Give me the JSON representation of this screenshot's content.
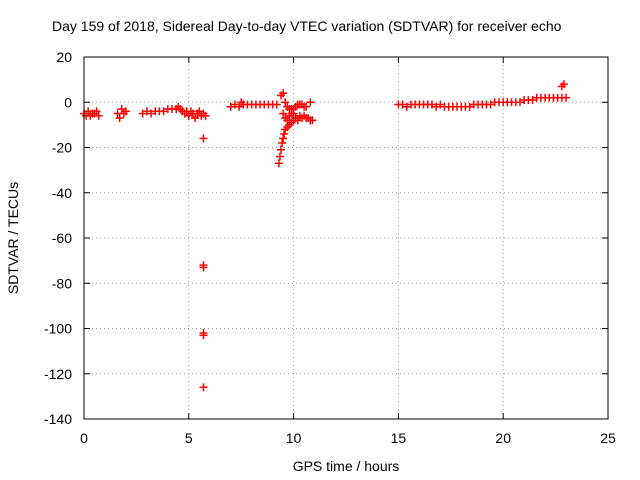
{
  "chart_data": {
    "type": "scatter",
    "title": "Day 159 of 2018, Sidereal Day-to-day VTEC variation (SDTVAR) for receiver echo",
    "xlabel": "GPS time / hours",
    "ylabel": "SDTVAR / TECUs",
    "xlim": [
      0,
      25
    ],
    "ylim": [
      -140,
      20
    ],
    "xticks": [
      0,
      5,
      10,
      15,
      20,
      25
    ],
    "yticks": [
      -140,
      -120,
      -100,
      -80,
      -60,
      -40,
      -20,
      0,
      20
    ],
    "grid": true,
    "legend": "none",
    "marker": "+",
    "series": [
      {
        "name": "SDTVAR",
        "color": "#ff0000",
        "points": [
          [
            0.0,
            -5
          ],
          [
            0.1,
            -6
          ],
          [
            0.2,
            -4
          ],
          [
            0.3,
            -6
          ],
          [
            0.4,
            -5
          ],
          [
            0.5,
            -5
          ],
          [
            0.6,
            -4
          ],
          [
            0.7,
            -6
          ],
          [
            1.6,
            -5
          ],
          [
            1.7,
            -7
          ],
          [
            1.8,
            -3
          ],
          [
            1.9,
            -5
          ],
          [
            2.0,
            -4
          ],
          [
            2.8,
            -5
          ],
          [
            3.0,
            -4
          ],
          [
            3.2,
            -5
          ],
          [
            3.4,
            -4
          ],
          [
            3.6,
            -4
          ],
          [
            3.8,
            -4
          ],
          [
            4.0,
            -3
          ],
          [
            4.2,
            -3
          ],
          [
            4.4,
            -3
          ],
          [
            4.5,
            -2
          ],
          [
            4.6,
            -3
          ],
          [
            4.7,
            -4
          ],
          [
            4.8,
            -5
          ],
          [
            4.9,
            -4
          ],
          [
            5.0,
            -6
          ],
          [
            5.1,
            -4
          ],
          [
            5.2,
            -5
          ],
          [
            5.3,
            -7
          ],
          [
            5.4,
            -5
          ],
          [
            5.5,
            -4
          ],
          [
            5.6,
            -6
          ],
          [
            5.7,
            -5
          ],
          [
            5.8,
            -6
          ],
          [
            5.7,
            -16
          ],
          [
            5.7,
            -72
          ],
          [
            5.7,
            -73
          ],
          [
            5.7,
            -102
          ],
          [
            5.7,
            -103
          ],
          [
            5.7,
            -126
          ],
          [
            7.0,
            -2
          ],
          [
            7.2,
            -1
          ],
          [
            7.4,
            -2
          ],
          [
            7.5,
            0
          ],
          [
            7.6,
            -1
          ],
          [
            7.8,
            -1
          ],
          [
            8.0,
            -1
          ],
          [
            8.2,
            -1
          ],
          [
            8.4,
            -1
          ],
          [
            8.6,
            -1
          ],
          [
            8.8,
            -1
          ],
          [
            9.0,
            -1
          ],
          [
            9.2,
            -1
          ],
          [
            9.4,
            3
          ],
          [
            9.5,
            4
          ],
          [
            9.6,
            0
          ],
          [
            9.7,
            -2
          ],
          [
            9.8,
            -3
          ],
          [
            9.9,
            -3
          ],
          [
            10.0,
            -3
          ],
          [
            10.1,
            -2
          ],
          [
            10.2,
            -1
          ],
          [
            10.3,
            -1
          ],
          [
            10.4,
            -1
          ],
          [
            10.5,
            -2
          ],
          [
            10.6,
            -2
          ],
          [
            10.8,
            0
          ],
          [
            9.3,
            -27
          ],
          [
            9.35,
            -24
          ],
          [
            9.4,
            -21
          ],
          [
            9.45,
            -18
          ],
          [
            9.5,
            -16
          ],
          [
            9.55,
            -14
          ],
          [
            9.6,
            -12
          ],
          [
            9.7,
            -11
          ],
          [
            9.8,
            -10
          ],
          [
            9.9,
            -9
          ],
          [
            10.0,
            -8
          ],
          [
            10.1,
            -7
          ],
          [
            10.2,
            -8
          ],
          [
            10.3,
            -6
          ],
          [
            10.4,
            -7
          ],
          [
            10.5,
            -6
          ],
          [
            10.6,
            -7
          ],
          [
            10.7,
            -7
          ],
          [
            10.8,
            -8
          ],
          [
            10.9,
            -8
          ],
          [
            9.5,
            -5
          ],
          [
            9.6,
            -7
          ],
          [
            9.7,
            -8
          ],
          [
            9.8,
            -6
          ],
          [
            9.9,
            -5
          ],
          [
            10.0,
            -5
          ],
          [
            15.0,
            -1
          ],
          [
            15.2,
            -1
          ],
          [
            15.4,
            -2
          ],
          [
            15.6,
            -1
          ],
          [
            15.8,
            -1
          ],
          [
            16.0,
            -1
          ],
          [
            16.2,
            -1
          ],
          [
            16.4,
            -1
          ],
          [
            16.6,
            -1
          ],
          [
            16.8,
            -2
          ],
          [
            17.0,
            -1
          ],
          [
            17.2,
            -2
          ],
          [
            17.4,
            -2
          ],
          [
            17.6,
            -2
          ],
          [
            17.8,
            -2
          ],
          [
            18.0,
            -2
          ],
          [
            18.2,
            -2
          ],
          [
            18.4,
            -2
          ],
          [
            18.6,
            -1
          ],
          [
            18.8,
            -1
          ],
          [
            19.0,
            -1
          ],
          [
            19.2,
            -1
          ],
          [
            19.4,
            -1
          ],
          [
            19.6,
            0
          ],
          [
            19.8,
            0
          ],
          [
            20.0,
            0
          ],
          [
            20.2,
            0
          ],
          [
            20.4,
            0
          ],
          [
            20.6,
            0
          ],
          [
            20.8,
            0
          ],
          [
            21.0,
            1
          ],
          [
            21.2,
            1
          ],
          [
            21.4,
            1
          ],
          [
            21.6,
            2
          ],
          [
            21.8,
            2
          ],
          [
            22.0,
            2
          ],
          [
            22.2,
            2
          ],
          [
            22.4,
            2
          ],
          [
            22.6,
            2
          ],
          [
            22.8,
            2
          ],
          [
            23.0,
            2
          ],
          [
            22.8,
            7
          ],
          [
            22.9,
            8
          ]
        ]
      }
    ]
  }
}
